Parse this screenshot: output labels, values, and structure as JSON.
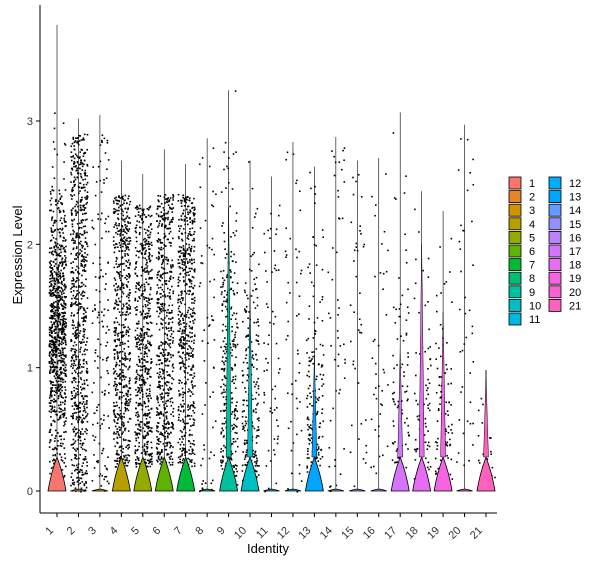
{
  "chart_data": {
    "type": "violin",
    "xlabel": "Identity",
    "ylabel": "Expression Level",
    "ylim": [
      -0.18,
      3.85
    ],
    "yticks": [
      0,
      1,
      2,
      3
    ],
    "categories": [
      "1",
      "2",
      "3",
      "4",
      "5",
      "6",
      "7",
      "8",
      "9",
      "10",
      "11",
      "12",
      "13",
      "14",
      "15",
      "16",
      "17",
      "18",
      "19",
      "20",
      "21"
    ],
    "colors": [
      "#F8766D",
      "#E88526",
      "#D39200",
      "#B79F00",
      "#93AA00",
      "#5EB300",
      "#00BA38",
      "#00BF74",
      "#00C19F",
      "#00BFC4",
      "#00B9E3",
      "#00ADFA",
      "#619CFF",
      "#AE87FF",
      "#DB72FB",
      "#F564E3",
      "#FF61C3",
      "#FF6C91",
      "#F8766D",
      "#F8766D",
      "#FF6C91"
    ],
    "legend_colors": [
      "#F8766D",
      "#E88526",
      "#D39200",
      "#B79F00",
      "#93AA00",
      "#5EB300",
      "#00BA38",
      "#00BF74",
      "#00C19F",
      "#00BFC4",
      "#00B9E3",
      "#00ADFA",
      "#00A5FF",
      "#619CFF",
      "#9590FF",
      "#B983FF",
      "#D575FE",
      "#E76BF3",
      "#F564E3",
      "#FD61D1",
      "#FF62BC"
    ],
    "violin_colors": [
      "#F8766D",
      "#E88526",
      "#D39200",
      "#B79F00",
      "#93AA00",
      "#5EB300",
      "#00BA38",
      "#00BF74",
      "#00C19F",
      "#00BFC4",
      "#00B9E3",
      "#00ADFA",
      "#00A5FF",
      "#619CFF",
      "#9590FF",
      "#B983FF",
      "#D575FE",
      "#E76BF3",
      "#F564E3",
      "#FD61D1",
      "#FF62BC"
    ],
    "series": [
      {
        "cluster": "1",
        "max": 3.78,
        "spread": 3.3,
        "density": 0.55,
        "peak": 0.22,
        "n": 900
      },
      {
        "cluster": "2",
        "max": 3.02,
        "spread": 2.9,
        "density": 0.04,
        "peak": 0.02,
        "n": 750
      },
      {
        "cluster": "3",
        "max": 3.05,
        "spread": 2.9,
        "density": 0.04,
        "peak": 0.02,
        "n": 140
      },
      {
        "cluster": "4",
        "max": 2.68,
        "spread": 2.6,
        "density": 0.4,
        "peak": 0.12,
        "n": 600
      },
      {
        "cluster": "5",
        "max": 2.57,
        "spread": 2.5,
        "density": 0.45,
        "peak": 0.14,
        "n": 580
      },
      {
        "cluster": "6",
        "max": 2.77,
        "spread": 2.6,
        "density": 0.5,
        "peak": 0.15,
        "n": 560
      },
      {
        "cluster": "7",
        "max": 2.65,
        "spread": 2.6,
        "density": 0.55,
        "peak": 0.17,
        "n": 550
      },
      {
        "cluster": "8",
        "max": 2.86,
        "spread": 2.8,
        "density": 0.03,
        "peak": 0.02,
        "n": 60
      },
      {
        "cluster": "9",
        "max": 3.25,
        "spread": 3.1,
        "density": 0.6,
        "peak": 2.3,
        "n": 320
      },
      {
        "cluster": "10",
        "max": 2.68,
        "spread": 2.6,
        "density": 0.55,
        "peak": 1.6,
        "n": 220
      },
      {
        "cluster": "11",
        "max": 2.55,
        "spread": 2.5,
        "density": 0.03,
        "peak": 0.02,
        "n": 60
      },
      {
        "cluster": "12",
        "max": 2.83,
        "spread": 2.8,
        "density": 0.03,
        "peak": 0.02,
        "n": 50
      },
      {
        "cluster": "13",
        "max": 2.63,
        "spread": 2.5,
        "density": 0.65,
        "peak": 1.1,
        "n": 160
      },
      {
        "cluster": "14",
        "max": 2.87,
        "spread": 2.8,
        "density": 0.03,
        "peak": 0.02,
        "n": 50
      },
      {
        "cluster": "15",
        "max": 2.68,
        "spread": 2.6,
        "density": 0.03,
        "peak": 0.02,
        "n": 40
      },
      {
        "cluster": "16",
        "max": 2.7,
        "spread": 2.6,
        "density": 0.03,
        "peak": 0.02,
        "n": 40
      },
      {
        "cluster": "17",
        "max": 3.07,
        "spread": 2.9,
        "density": 0.55,
        "peak": 1.15,
        "n": 90
      },
      {
        "cluster": "18",
        "max": 2.43,
        "spread": 2.4,
        "density": 0.6,
        "peak": 2.0,
        "n": 90
      },
      {
        "cluster": "19",
        "max": 2.27,
        "spread": 2.2,
        "density": 0.6,
        "peak": 1.45,
        "n": 90
      },
      {
        "cluster": "20",
        "max": 2.97,
        "spread": 2.9,
        "density": 0.03,
        "peak": 0.02,
        "n": 40
      },
      {
        "cluster": "21",
        "max": 0.98,
        "spread": 0.98,
        "density": 0.55,
        "peak": 1.0,
        "n": 20
      }
    ],
    "legend": {
      "position": "right",
      "columns": 2
    },
    "grid": false
  }
}
